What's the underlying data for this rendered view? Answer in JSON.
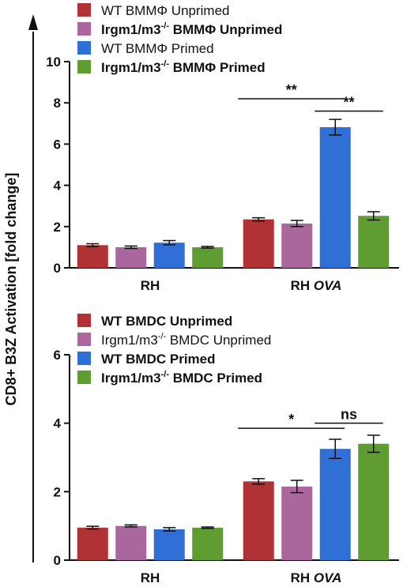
{
  "ylabel": "CD8+ B3Z Activation [fold change]",
  "colors": {
    "wt_unprimed": "#b03234",
    "ko_unprimed": "#a9679e",
    "wt_primed": "#2f6fd6",
    "ko_primed": "#5f9c32",
    "axis": "#111111"
  },
  "chart_data": [
    {
      "type": "bar",
      "title": "",
      "xlabel": "",
      "ylabel": "",
      "categories": [
        {
          "main": "RH",
          "suffix": ""
        },
        {
          "main": "RH ",
          "suffix": "OVA"
        }
      ],
      "ylim": [
        0,
        10
      ],
      "yticks": [
        "0",
        "2",
        "4",
        "6",
        "8",
        "10"
      ],
      "series": [
        {
          "name": "WT BMMΦ Unprimed",
          "color_key": "wt_unprimed",
          "bold": false,
          "values": [
            1.1,
            2.35
          ],
          "errors": [
            0.07,
            0.08
          ]
        },
        {
          "name": "Irgm1/m3",
          "name_sup": "-/-",
          "name_rest": " BMMΦ Unprimed",
          "color_key": "ko_unprimed",
          "bold": true,
          "values": [
            1.0,
            2.15
          ],
          "errors": [
            0.06,
            0.15
          ]
        },
        {
          "name": "WT BMMΦ Primed",
          "color_key": "wt_primed",
          "bold": false,
          "values": [
            1.22,
            6.82
          ],
          "errors": [
            0.1,
            0.38
          ]
        },
        {
          "name": "Irgm1/m3",
          "name_sup": "-/-",
          "name_rest": " BMMΦ Primed",
          "color_key": "ko_primed",
          "bold": true,
          "values": [
            1.0,
            2.52
          ],
          "errors": [
            0.04,
            0.2
          ]
        }
      ],
      "legend_position": "top-left",
      "significance": [
        {
          "label": "**",
          "category": 1,
          "from_series": 0,
          "to_series": 2,
          "y": 8.2
        },
        {
          "label": "**",
          "category": 1,
          "from_series": 2,
          "to_series": 3,
          "y": 7.6
        }
      ]
    },
    {
      "type": "bar",
      "title": "",
      "xlabel": "",
      "ylabel": "",
      "categories": [
        {
          "main": "RH",
          "suffix": ""
        },
        {
          "main": "RH ",
          "suffix": "OVA"
        }
      ],
      "ylim": [
        0,
        6
      ],
      "yticks": [
        "0",
        "2",
        "4",
        "6"
      ],
      "series": [
        {
          "name": "WT BMDC Unprimed",
          "color_key": "wt_unprimed",
          "bold": true,
          "values": [
            0.95,
            2.3
          ],
          "errors": [
            0.04,
            0.08
          ]
        },
        {
          "name": "Irgm1/m3",
          "name_sup": "-/-",
          "name_rest": " BMDC Unprimed",
          "color_key": "ko_unprimed",
          "bold": false,
          "values": [
            1.0,
            2.15
          ],
          "errors": [
            0.03,
            0.18
          ]
        },
        {
          "name": "WT BMDC Primed",
          "color_key": "wt_primed",
          "bold": true,
          "values": [
            0.9,
            3.25
          ],
          "errors": [
            0.05,
            0.28
          ]
        },
        {
          "name": "Irgm1/m3",
          "name_sup": "-/-",
          "name_rest": " BMDC Primed",
          "color_key": "ko_primed",
          "bold": true,
          "values": [
            0.95,
            3.4
          ],
          "errors": [
            0.02,
            0.25
          ]
        }
      ],
      "legend_position": "top-left",
      "significance": [
        {
          "label": "*",
          "category": 1,
          "from_series": 0,
          "to_series": 2,
          "y": 3.85
        },
        {
          "label": "ns",
          "category": 1,
          "from_series": 2,
          "to_series": 3,
          "y": 4.0
        }
      ]
    }
  ]
}
